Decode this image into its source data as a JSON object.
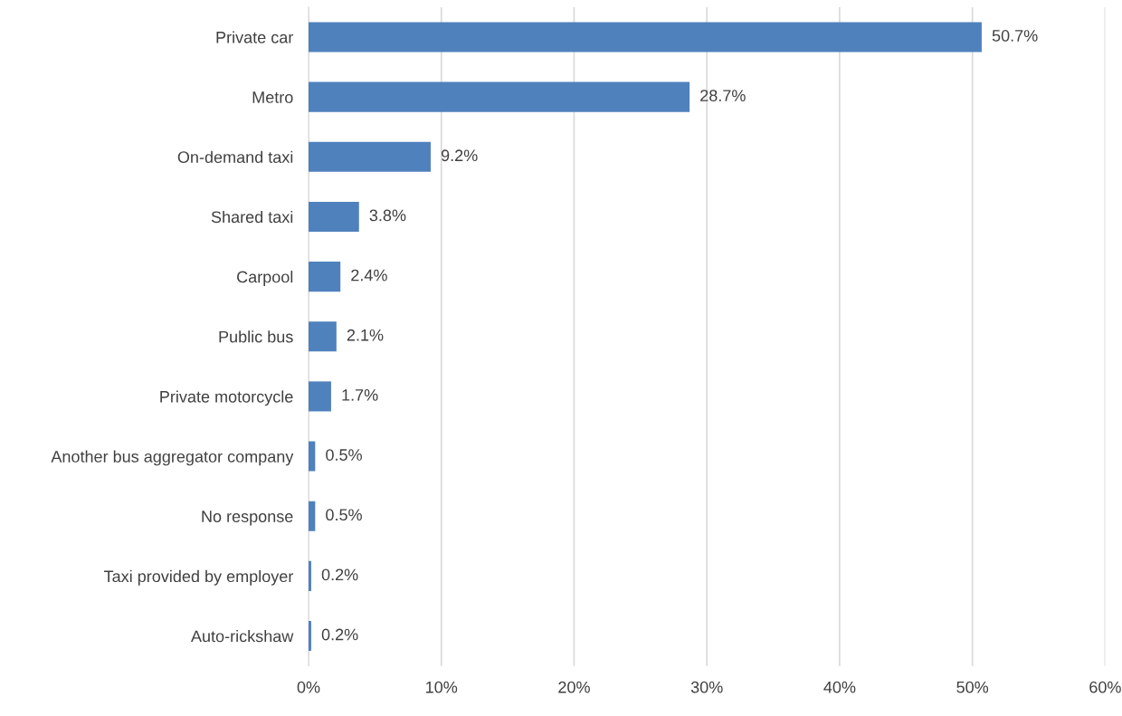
{
  "chart_data": {
    "type": "bar",
    "orientation": "horizontal",
    "categories": [
      "Private car",
      "Metro",
      "On-demand taxi",
      "Shared taxi",
      "Carpool",
      "Public bus",
      "Private motorcycle",
      "Another bus aggregator company",
      "No response",
      "Taxi provided by employer",
      "Auto-rickshaw"
    ],
    "values": [
      50.7,
      28.7,
      9.2,
      3.8,
      2.4,
      2.1,
      1.7,
      0.5,
      0.5,
      0.2,
      0.2
    ],
    "value_labels": [
      "50.7%",
      "28.7%",
      "9.2%",
      "3.8%",
      "2.4%",
      "2.1%",
      "1.7%",
      "0.5%",
      "0.5%",
      "0.2%",
      "0.2%"
    ],
    "color": "#4f81bd",
    "xlim": [
      0,
      60
    ],
    "xticks": [
      {
        "value": 0,
        "label": "0%"
      },
      {
        "value": 10,
        "label": "10%"
      },
      {
        "value": 20,
        "label": "20%"
      },
      {
        "value": 30,
        "label": "30%"
      },
      {
        "value": 40,
        "label": "40%"
      },
      {
        "value": 50,
        "label": "50%"
      },
      {
        "value": 60,
        "label": "60%"
      }
    ],
    "grid": "x"
  }
}
